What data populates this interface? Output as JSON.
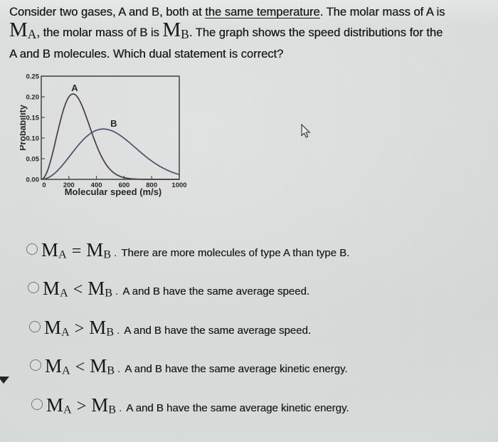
{
  "question": {
    "line1": {
      "pre": "Consider two gases, A and B, both at ",
      "underlined": "the same temperature",
      "post": ". The molar mass of A is"
    },
    "line2": {
      "m1": "M",
      "m1_sub": "A",
      "mid": ", the molar mass of B is ",
      "m2": "M",
      "m2_sub": "B",
      "post": ". The graph shows the speed distributions for the"
    },
    "line3": "A and B molecules. Which dual statement is correct?"
  },
  "chart_data": {
    "type": "line",
    "title": "",
    "xlabel": "Molecular speed (m/s)",
    "ylabel": "Probability",
    "xlim": [
      0,
      1000
    ],
    "ylim": [
      0,
      0.25
    ],
    "x_ticks": [
      0,
      200,
      400,
      600,
      800,
      1000
    ],
    "y_tick_labels": [
      "0.00",
      "0.05",
      "0.10",
      "0.15",
      "0.20",
      "0.25"
    ],
    "grid": false,
    "legend": "inline-curve-labels",
    "x_samples": [
      0,
      100,
      200,
      300,
      400,
      500,
      600,
      700,
      800,
      900,
      1000
    ],
    "series": [
      {
        "name": "A",
        "model": "maxwell-boltzmann",
        "peak_speed": 230,
        "peak_probability": 0.207,
        "values": [
          0,
          0.088,
          0.2,
          0.175,
          0.083,
          0.024,
          0.004,
          0.001,
          0,
          0,
          0
        ],
        "color": "#45383b",
        "label_pos": {
          "speed": 242,
          "probability": 0.214
        }
      },
      {
        "name": "B",
        "model": "maxwell-boltzmann",
        "peak_speed": 450,
        "peak_probability": 0.122,
        "values": [
          0,
          0.016,
          0.054,
          0.095,
          0.119,
          0.119,
          0.1,
          0.071,
          0.044,
          0.024,
          0.012
        ],
        "color": "#474c66",
        "label_pos": {
          "speed": 525,
          "probability": 0.128
        }
      }
    ]
  },
  "options": [
    {
      "m1": "M",
      "m1_sub": "A",
      "op": "=",
      "m2": "M",
      "m2_sub": "B",
      "period": ".",
      "text": "There are more molecules of type A than type B."
    },
    {
      "m1": "M",
      "m1_sub": "A",
      "op": "<",
      "m2": "M",
      "m2_sub": "B",
      "period": ".",
      "text": "A and B have the same average speed."
    },
    {
      "m1": "M",
      "m1_sub": "A",
      "op": ">",
      "m2": "M",
      "m2_sub": "B",
      "period": ".",
      "text": "A and B have the same average speed."
    },
    {
      "m1": "M",
      "m1_sub": "A",
      "op": "<",
      "m2": "M",
      "m2_sub": "B",
      "period": ".",
      "text": "A and B have the same average kinetic energy."
    },
    {
      "m1": "M",
      "m1_sub": "A",
      "op": ">",
      "m2": "M",
      "m2_sub": "B",
      "period": ".",
      "text": "A and B have the same average kinetic energy."
    }
  ]
}
